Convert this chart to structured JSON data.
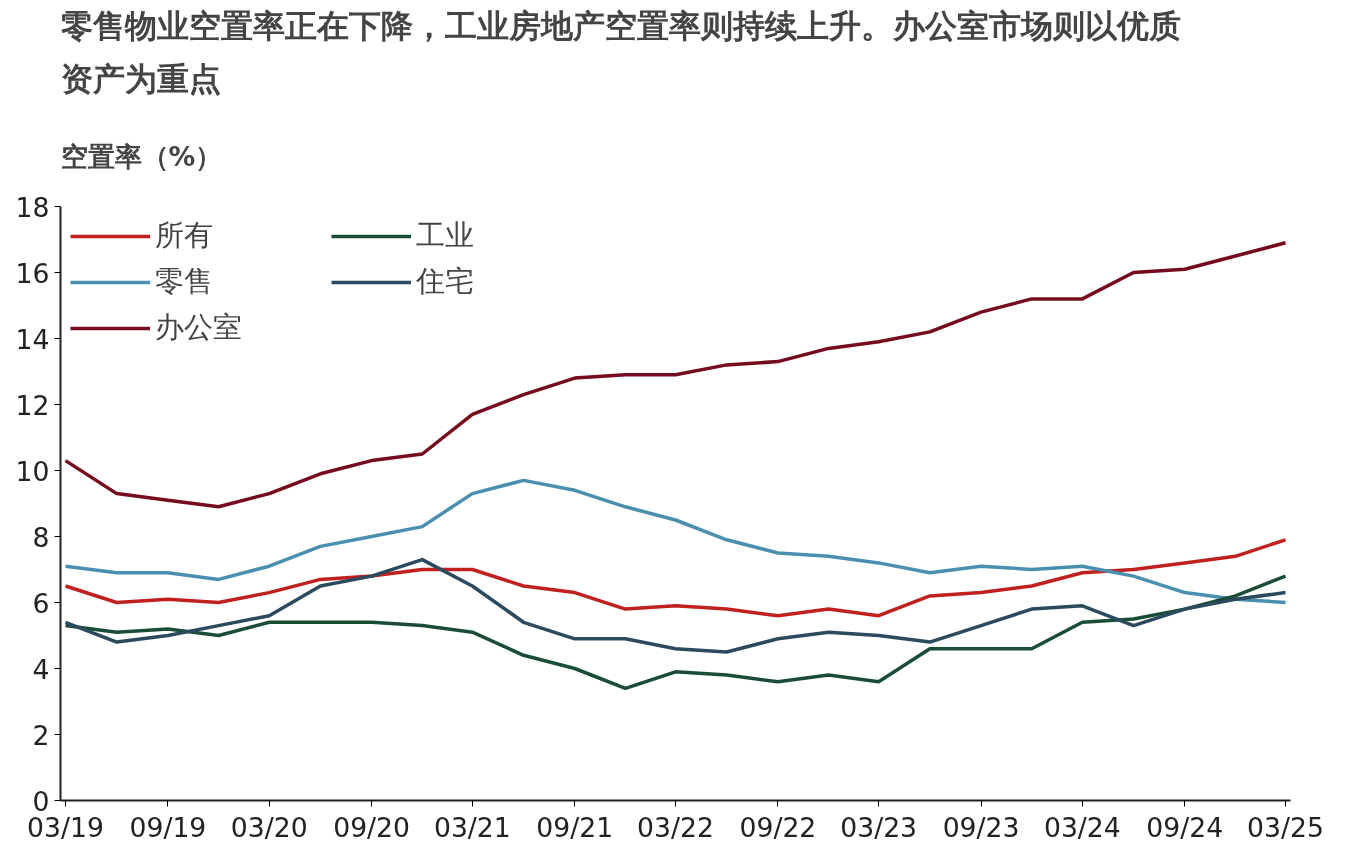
{
  "chart_data": {
    "type": "line",
    "title": "零售物业空置率正在下降，工业房地产空置率则持续上升。办公室市场则以优质资产为重点",
    "ylabel": "空置率（%）",
    "x": [
      "2019-03",
      "2019-06",
      "2019-09",
      "2019-12",
      "2020-03",
      "2020-06",
      "2020-09",
      "2020-12",
      "2021-03",
      "2021-06",
      "2021-09",
      "2021-12",
      "2022-03",
      "2022-06",
      "2022-09",
      "2022-12",
      "2023-03",
      "2023-06",
      "2023-09",
      "2023-12",
      "2024-03",
      "2024-06",
      "2024-09",
      "2024-12",
      "2025-03"
    ],
    "series": [
      {
        "name": "所有",
        "color": "#c0201e",
        "values": [
          6.5,
          6.0,
          6.1,
          6.0,
          6.3,
          6.7,
          6.8,
          7.0,
          7.0,
          6.5,
          6.3,
          5.8,
          5.9,
          5.8,
          5.6,
          5.8,
          5.6,
          6.2,
          6.3,
          6.5,
          6.9,
          7.0,
          7.2,
          7.4,
          7.9
        ]
      },
      {
        "name": "零售",
        "color": "#4a8fb0",
        "values": [
          7.1,
          6.9,
          6.9,
          6.7,
          7.1,
          7.7,
          8.0,
          8.3,
          9.3,
          9.7,
          9.4,
          8.9,
          8.5,
          7.9,
          7.5,
          7.4,
          7.2,
          6.9,
          7.1,
          7.0,
          7.1,
          6.8,
          6.3,
          6.1,
          6.0
        ]
      },
      {
        "name": "办公室",
        "color": "#760b1e",
        "values": [
          10.3,
          9.3,
          9.1,
          8.9,
          9.3,
          9.9,
          10.3,
          10.5,
          11.7,
          12.3,
          12.8,
          12.9,
          12.9,
          13.2,
          13.3,
          13.7,
          13.9,
          14.2,
          14.8,
          15.2,
          15.2,
          16.0,
          16.1,
          16.5,
          16.9
        ]
      },
      {
        "name": "工业",
        "color": "#1a4d35",
        "values": [
          5.3,
          5.1,
          5.2,
          5.0,
          5.4,
          5.4,
          5.4,
          5.3,
          5.1,
          4.4,
          4.0,
          3.4,
          3.9,
          3.8,
          3.6,
          3.8,
          3.6,
          4.6,
          4.6,
          4.6,
          5.4,
          5.5,
          5.8,
          6.2,
          6.8
        ]
      },
      {
        "name": "住宅",
        "color": "#2c4a5e",
        "values": [
          5.4,
          4.8,
          5.0,
          5.3,
          5.6,
          6.5,
          6.8,
          7.3,
          6.5,
          5.4,
          4.9,
          4.9,
          4.6,
          4.5,
          4.9,
          5.1,
          5.0,
          4.8,
          5.3,
          5.8,
          5.9,
          5.3,
          5.8,
          6.1,
          6.3
        ]
      }
    ],
    "xlim": [
      "2019-02-20",
      "2025-03-10"
    ],
    "xticks": [
      {
        "value": "2019-03",
        "label": "03/19"
      },
      {
        "value": "2019-09",
        "label": "09/19"
      },
      {
        "value": "2020-03",
        "label": "03/20"
      },
      {
        "value": "2020-09",
        "label": "09/20"
      },
      {
        "value": "2021-03",
        "label": "03/21"
      },
      {
        "value": "2021-09",
        "label": "09/21"
      },
      {
        "value": "2022-03",
        "label": "03/22"
      },
      {
        "value": "2022-09",
        "label": "09/22"
      },
      {
        "value": "2023-03",
        "label": "03/23"
      },
      {
        "value": "2023-09",
        "label": "09/23"
      },
      {
        "value": "2024-03",
        "label": "03/24"
      },
      {
        "value": "2024-09",
        "label": "09/24"
      },
      {
        "value": "2025-03",
        "label": "03/25"
      }
    ],
    "ylim": [
      0,
      18
    ],
    "yticks": [
      0,
      2,
      4,
      6,
      8,
      10,
      12,
      14,
      16,
      18
    ],
    "grid": false,
    "legend": "top left",
    "marker": "none",
    "line_style": "solid"
  }
}
